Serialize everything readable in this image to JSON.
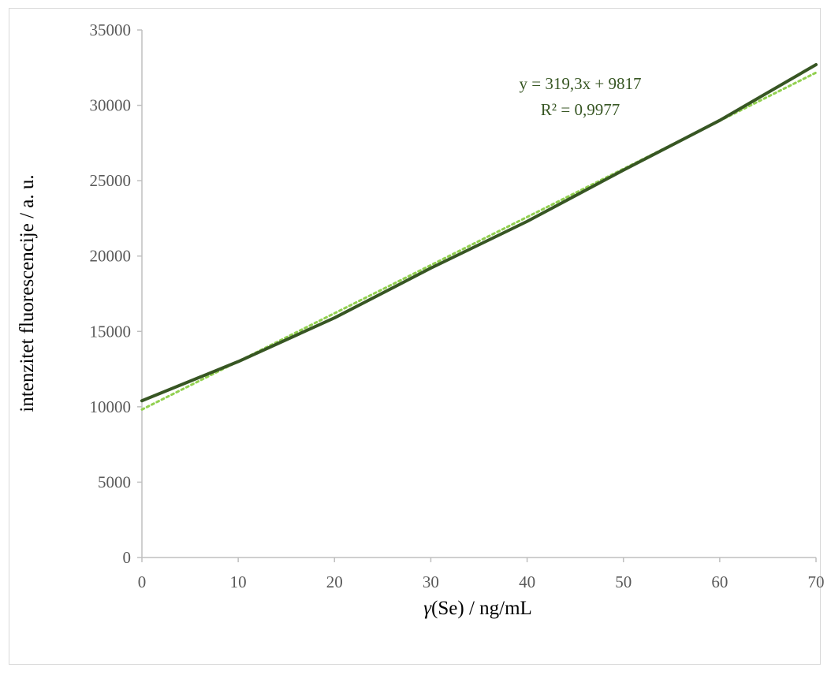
{
  "chart_data": {
    "type": "line",
    "title": "",
    "xlabel_var": "γ",
    "xlabel_rest": "(Se) / ng/mL",
    "ylabel": "intenzitet fluorescencije / a. u.",
    "xlim": [
      0,
      70
    ],
    "ylim": [
      0,
      35000
    ],
    "x_ticks": [
      0,
      10,
      20,
      30,
      40,
      50,
      60,
      70
    ],
    "y_ticks": [
      0,
      5000,
      10000,
      15000,
      20000,
      25000,
      30000,
      35000
    ],
    "grid": false,
    "series": [
      {
        "x": [
          0,
          10,
          20,
          30,
          40,
          50,
          60,
          70
        ],
        "y": [
          10400,
          13000,
          15900,
          19200,
          22300,
          25700,
          29000,
          32700
        ],
        "color": "#375623",
        "style": "solid"
      }
    ],
    "trendline": {
      "type": "linear",
      "slope": 319.3,
      "intercept": 9817,
      "color": "#92d050",
      "style": "dotted",
      "equation": "y = 319,3x + 9817",
      "r_squared": "R² = 0,9977"
    }
  }
}
